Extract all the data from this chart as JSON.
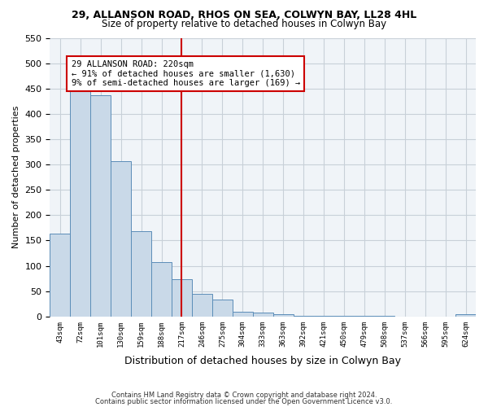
{
  "title1": "29, ALLANSON ROAD, RHOS ON SEA, COLWYN BAY, LL28 4HL",
  "title2": "Size of property relative to detached houses in Colwyn Bay",
  "xlabel": "Distribution of detached houses by size in Colwyn Bay",
  "ylabel": "Number of detached properties",
  "bar_color": "#c9d9e8",
  "bar_edge_color": "#5b8db8",
  "ref_line_color": "#cc0000",
  "ref_line_x": 6,
  "annotation_text": "29 ALLANSON ROAD: 220sqm\n← 91% of detached houses are smaller (1,630)\n9% of semi-detached houses are larger (169) →",
  "annotation_box_color": "#cc0000",
  "categories": [
    "43sqm",
    "72sqm",
    "101sqm",
    "130sqm",
    "159sqm",
    "188sqm",
    "217sqm",
    "246sqm",
    "275sqm",
    "304sqm",
    "333sqm",
    "363sqm",
    "392sqm",
    "421sqm",
    "450sqm",
    "479sqm",
    "508sqm",
    "537sqm",
    "566sqm",
    "595sqm",
    "624sqm"
  ],
  "values": [
    163,
    450,
    437,
    307,
    168,
    107,
    73,
    45,
    33,
    10,
    8,
    4,
    2,
    2,
    2,
    2,
    2,
    0,
    0,
    0,
    5
  ],
  "ylim": [
    0,
    550
  ],
  "yticks": [
    0,
    50,
    100,
    150,
    200,
    250,
    300,
    350,
    400,
    450,
    500,
    550
  ],
  "background_color": "#f0f4f8",
  "footer1": "Contains HM Land Registry data © Crown copyright and database right 2024.",
  "footer2": "Contains public sector information licensed under the Open Government Licence v3.0."
}
